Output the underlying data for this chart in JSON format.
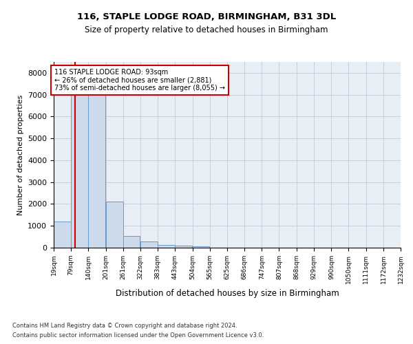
{
  "title1": "116, STAPLE LODGE ROAD, BIRMINGHAM, B31 3DL",
  "title2": "Size of property relative to detached houses in Birmingham",
  "xlabel": "Distribution of detached houses by size in Birmingham",
  "ylabel": "Number of detached properties",
  "bar_color": "#ccdaeb",
  "bar_edge_color": "#6699cc",
  "annotation_box_color": "#cc0000",
  "footnote1": "Contains HM Land Registry data © Crown copyright and database right 2024.",
  "footnote2": "Contains public sector information licensed under the Open Government Licence v3.0.",
  "annotation_line1": "116 STAPLE LODGE ROAD: 93sqm",
  "annotation_line2": "← 26% of detached houses are smaller (2,881)",
  "annotation_line3": "73% of semi-detached houses are larger (8,055) →",
  "property_sqm": 93,
  "bin_edges": [
    19,
    79,
    140,
    201,
    261,
    322,
    383,
    443,
    504,
    565,
    625,
    686,
    747,
    807,
    868,
    929,
    990,
    1050,
    1111,
    1172,
    1232
  ],
  "bin_labels": [
    "19sqm",
    "79sqm",
    "140sqm",
    "201sqm",
    "261sqm",
    "322sqm",
    "383sqm",
    "443sqm",
    "504sqm",
    "565sqm",
    "625sqm",
    "686sqm",
    "747sqm",
    "807sqm",
    "868sqm",
    "929sqm",
    "990sqm",
    "1050sqm",
    "1111sqm",
    "1172sqm",
    "1232sqm"
  ],
  "bar_heights": [
    1200,
    7400,
    7350,
    2100,
    550,
    280,
    115,
    85,
    55,
    0,
    0,
    0,
    0,
    0,
    0,
    0,
    0,
    0,
    0,
    0
  ],
  "ylim": [
    0,
    8500
  ],
  "yticks": [
    0,
    1000,
    2000,
    3000,
    4000,
    5000,
    6000,
    7000,
    8000
  ],
  "red_line_x": 93,
  "figsize": [
    6.0,
    5.0
  ],
  "dpi": 100
}
